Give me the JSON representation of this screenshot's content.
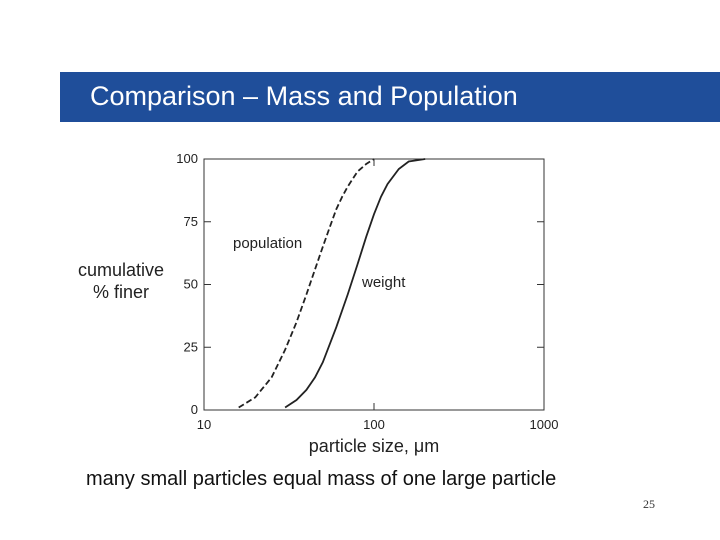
{
  "slide": {
    "title": "Comparison – Mass and Population",
    "caption": "many small particles equal mass of one large particle",
    "page_number": "25",
    "colors": {
      "title_bar": "#1f4e9a",
      "title_text": "#ffffff"
    }
  },
  "chart_data": {
    "type": "line",
    "title": "",
    "xlabel": "particle size, μm",
    "ylabel_lines": [
      "cumulative",
      "% finer"
    ],
    "xscale": "log",
    "xlim": [
      10,
      1000
    ],
    "ylim": [
      0,
      100
    ],
    "xticks": [
      10,
      100,
      1000
    ],
    "xtick_labels": [
      "10",
      "100",
      "1000"
    ],
    "yticks": [
      0,
      25,
      50,
      75,
      100
    ],
    "ytick_labels": [
      "0",
      "25",
      "50",
      "75",
      "100"
    ],
    "grid": false,
    "legend": "none",
    "series": [
      {
        "name": "population",
        "style": "dashed",
        "points": [
          [
            16,
            1
          ],
          [
            20,
            5
          ],
          [
            25,
            13
          ],
          [
            30,
            24
          ],
          [
            35,
            35
          ],
          [
            40,
            46
          ],
          [
            45,
            56
          ],
          [
            50,
            65
          ],
          [
            55,
            73
          ],
          [
            60,
            80
          ],
          [
            65,
            85
          ],
          [
            70,
            89
          ],
          [
            80,
            95
          ],
          [
            90,
            98
          ],
          [
            100,
            100
          ]
        ]
      },
      {
        "name": "weight",
        "style": "solid",
        "points": [
          [
            30,
            1
          ],
          [
            35,
            4
          ],
          [
            40,
            8
          ],
          [
            45,
            13
          ],
          [
            50,
            19
          ],
          [
            60,
            33
          ],
          [
            70,
            46
          ],
          [
            80,
            58
          ],
          [
            90,
            69
          ],
          [
            100,
            78
          ],
          [
            110,
            85
          ],
          [
            120,
            90
          ],
          [
            140,
            96
          ],
          [
            160,
            99
          ],
          [
            200,
            100
          ]
        ]
      }
    ]
  }
}
